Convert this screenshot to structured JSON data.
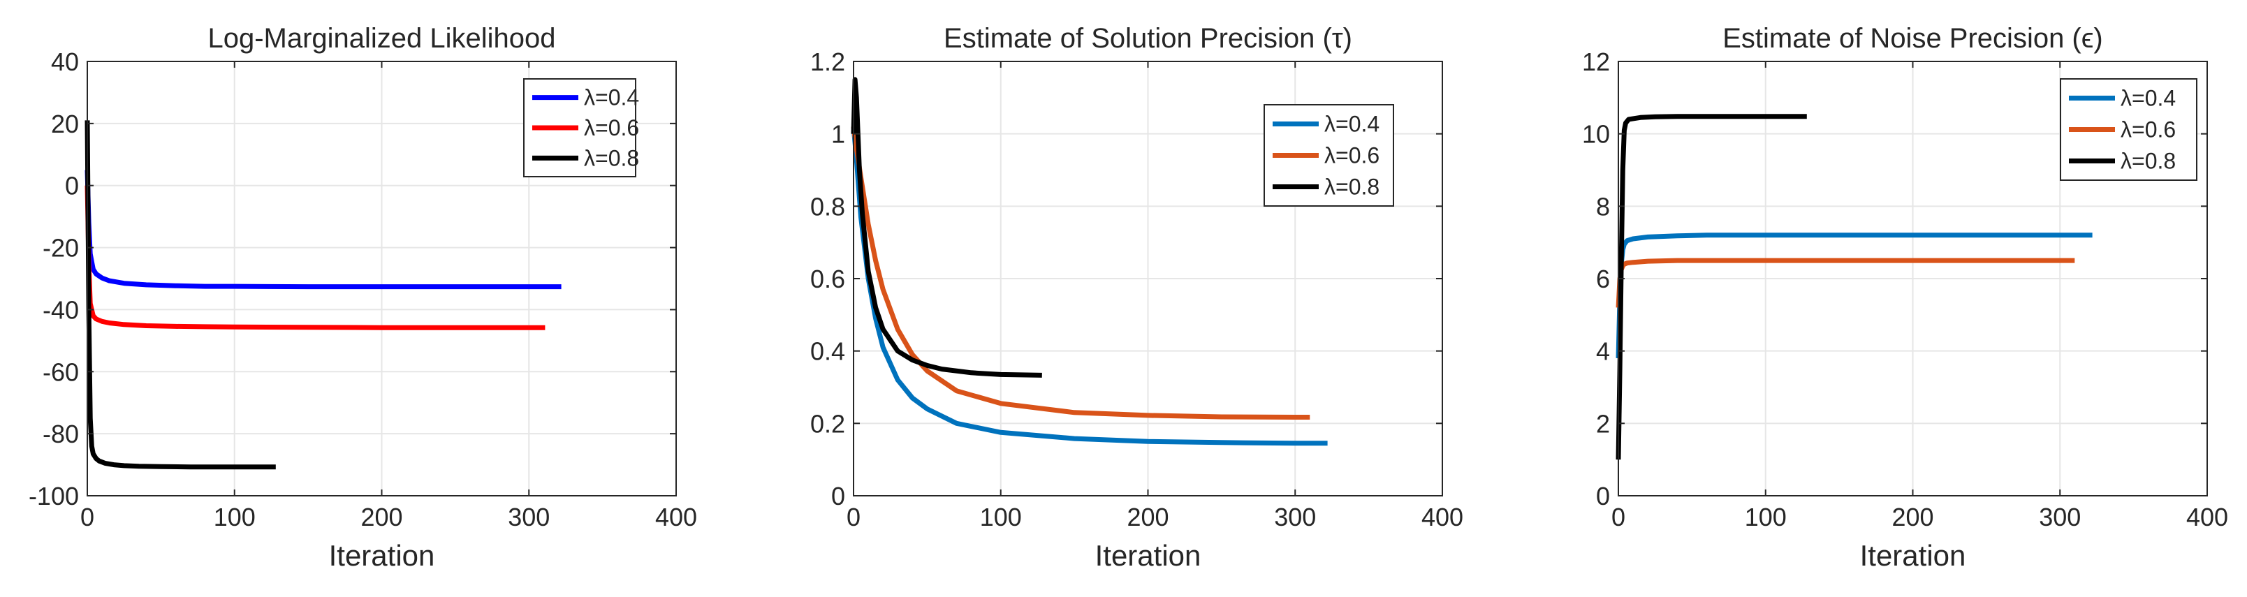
{
  "chart_data": [
    {
      "type": "line",
      "title": "Log-Marginalized Likelihood",
      "xlabel": "Iteration",
      "ylabel": "",
      "xlim": [
        0,
        400
      ],
      "ylim": [
        -100,
        40
      ],
      "xticks": [
        0,
        100,
        200,
        300,
        400
      ],
      "yticks": [
        -100,
        -80,
        -60,
        -40,
        -20,
        0,
        20,
        40
      ],
      "grid": true,
      "legend_position": "top-right",
      "series": [
        {
          "name": "λ=0.4",
          "color": "#0000ff",
          "x": [
            0,
            1,
            2,
            4,
            6,
            10,
            15,
            25,
            40,
            60,
            80,
            100,
            150,
            200,
            250,
            300,
            322
          ],
          "y": [
            5,
            -12,
            -22,
            -27,
            -28.5,
            -29.8,
            -30.7,
            -31.5,
            -32,
            -32.3,
            -32.5,
            -32.5,
            -32.6,
            -32.6,
            -32.6,
            -32.6,
            -32.6
          ]
        },
        {
          "name": "λ=0.6",
          "color": "#ff0000",
          "x": [
            0,
            1,
            2,
            4,
            6,
            10,
            15,
            25,
            40,
            60,
            80,
            100,
            150,
            200,
            250,
            300,
            311
          ],
          "y": [
            0,
            -25,
            -38,
            -42,
            -43,
            -43.8,
            -44.3,
            -44.8,
            -45.2,
            -45.4,
            -45.5,
            -45.6,
            -45.7,
            -45.8,
            -45.8,
            -45.8,
            -45.8
          ]
        },
        {
          "name": "λ=0.8",
          "color": "#000000",
          "x": [
            0,
            0.5,
            1,
            2,
            3,
            4,
            6,
            8,
            12,
            18,
            25,
            35,
            50,
            70,
            100,
            128
          ],
          "y": [
            21,
            -10,
            -40,
            -75,
            -84,
            -86.5,
            -88,
            -88.8,
            -89.5,
            -90,
            -90.3,
            -90.5,
            -90.6,
            -90.7,
            -90.7,
            -90.7
          ]
        }
      ]
    },
    {
      "type": "line",
      "title": "Estimate of Solution Precision (τ)",
      "xlabel": "Iteration",
      "ylabel": "",
      "xlim": [
        0,
        400
      ],
      "ylim": [
        0,
        1.2
      ],
      "xticks": [
        0,
        100,
        200,
        300,
        400
      ],
      "yticks": [
        0,
        0.2,
        0.4,
        0.6,
        0.8,
        1,
        1.2
      ],
      "grid": true,
      "legend_position": "top-right",
      "series": [
        {
          "name": "λ=0.4",
          "color": "#0072bd",
          "x": [
            0,
            2,
            5,
            10,
            15,
            20,
            30,
            40,
            50,
            70,
            100,
            150,
            200,
            250,
            300,
            322
          ],
          "y": [
            1.02,
            0.93,
            0.77,
            0.6,
            0.49,
            0.41,
            0.32,
            0.27,
            0.24,
            0.2,
            0.175,
            0.158,
            0.15,
            0.147,
            0.145,
            0.145
          ]
        },
        {
          "name": "λ=0.6",
          "color": "#d95319",
          "x": [
            0,
            2,
            5,
            10,
            15,
            20,
            30,
            40,
            50,
            70,
            100,
            150,
            200,
            250,
            300,
            310
          ],
          "y": [
            1.02,
            0.96,
            0.88,
            0.75,
            0.65,
            0.57,
            0.46,
            0.39,
            0.345,
            0.29,
            0.255,
            0.23,
            0.222,
            0.218,
            0.217,
            0.217
          ]
        },
        {
          "name": "λ=0.8",
          "color": "#000000",
          "x": [
            0,
            1,
            2,
            3,
            4,
            6,
            10,
            15,
            20,
            30,
            40,
            50,
            60,
            80,
            100,
            128
          ],
          "y": [
            1.0,
            1.15,
            1.1,
            1.0,
            0.9,
            0.78,
            0.62,
            0.52,
            0.46,
            0.4,
            0.375,
            0.36,
            0.35,
            0.34,
            0.335,
            0.333
          ]
        }
      ]
    },
    {
      "type": "line",
      "title": "Estimate of Noise Precision (ϵ)",
      "xlabel": "Iteration",
      "ylabel": "",
      "xlim": [
        0,
        400
      ],
      "ylim": [
        0,
        12
      ],
      "xticks": [
        0,
        100,
        200,
        300,
        400
      ],
      "yticks": [
        0,
        2,
        4,
        6,
        8,
        10,
        12
      ],
      "grid": true,
      "legend_position": "top-right",
      "series": [
        {
          "name": "λ=0.4",
          "color": "#0072bd",
          "x": [
            0,
            1,
            2,
            3,
            4,
            6,
            10,
            20,
            40,
            60,
            100,
            150,
            200,
            250,
            300,
            322
          ],
          "y": [
            3.8,
            5.5,
            6.4,
            6.8,
            6.95,
            7.05,
            7.1,
            7.15,
            7.18,
            7.2,
            7.2,
            7.2,
            7.2,
            7.2,
            7.2,
            7.2
          ]
        },
        {
          "name": "λ=0.6",
          "color": "#d95319",
          "x": [
            0,
            1,
            2,
            3,
            4,
            6,
            10,
            20,
            40,
            60,
            100,
            150,
            200,
            250,
            300,
            310
          ],
          "y": [
            5.2,
            6.0,
            6.25,
            6.35,
            6.4,
            6.43,
            6.45,
            6.48,
            6.5,
            6.5,
            6.5,
            6.5,
            6.5,
            6.5,
            6.5,
            6.5
          ]
        },
        {
          "name": "λ=0.8",
          "color": "#000000",
          "x": [
            0,
            1,
            2,
            3,
            4,
            5,
            7,
            10,
            15,
            25,
            40,
            60,
            100,
            128
          ],
          "y": [
            1.0,
            3.5,
            6.5,
            9.0,
            10.1,
            10.3,
            10.4,
            10.42,
            10.45,
            10.47,
            10.48,
            10.48,
            10.48,
            10.48
          ]
        }
      ]
    }
  ]
}
